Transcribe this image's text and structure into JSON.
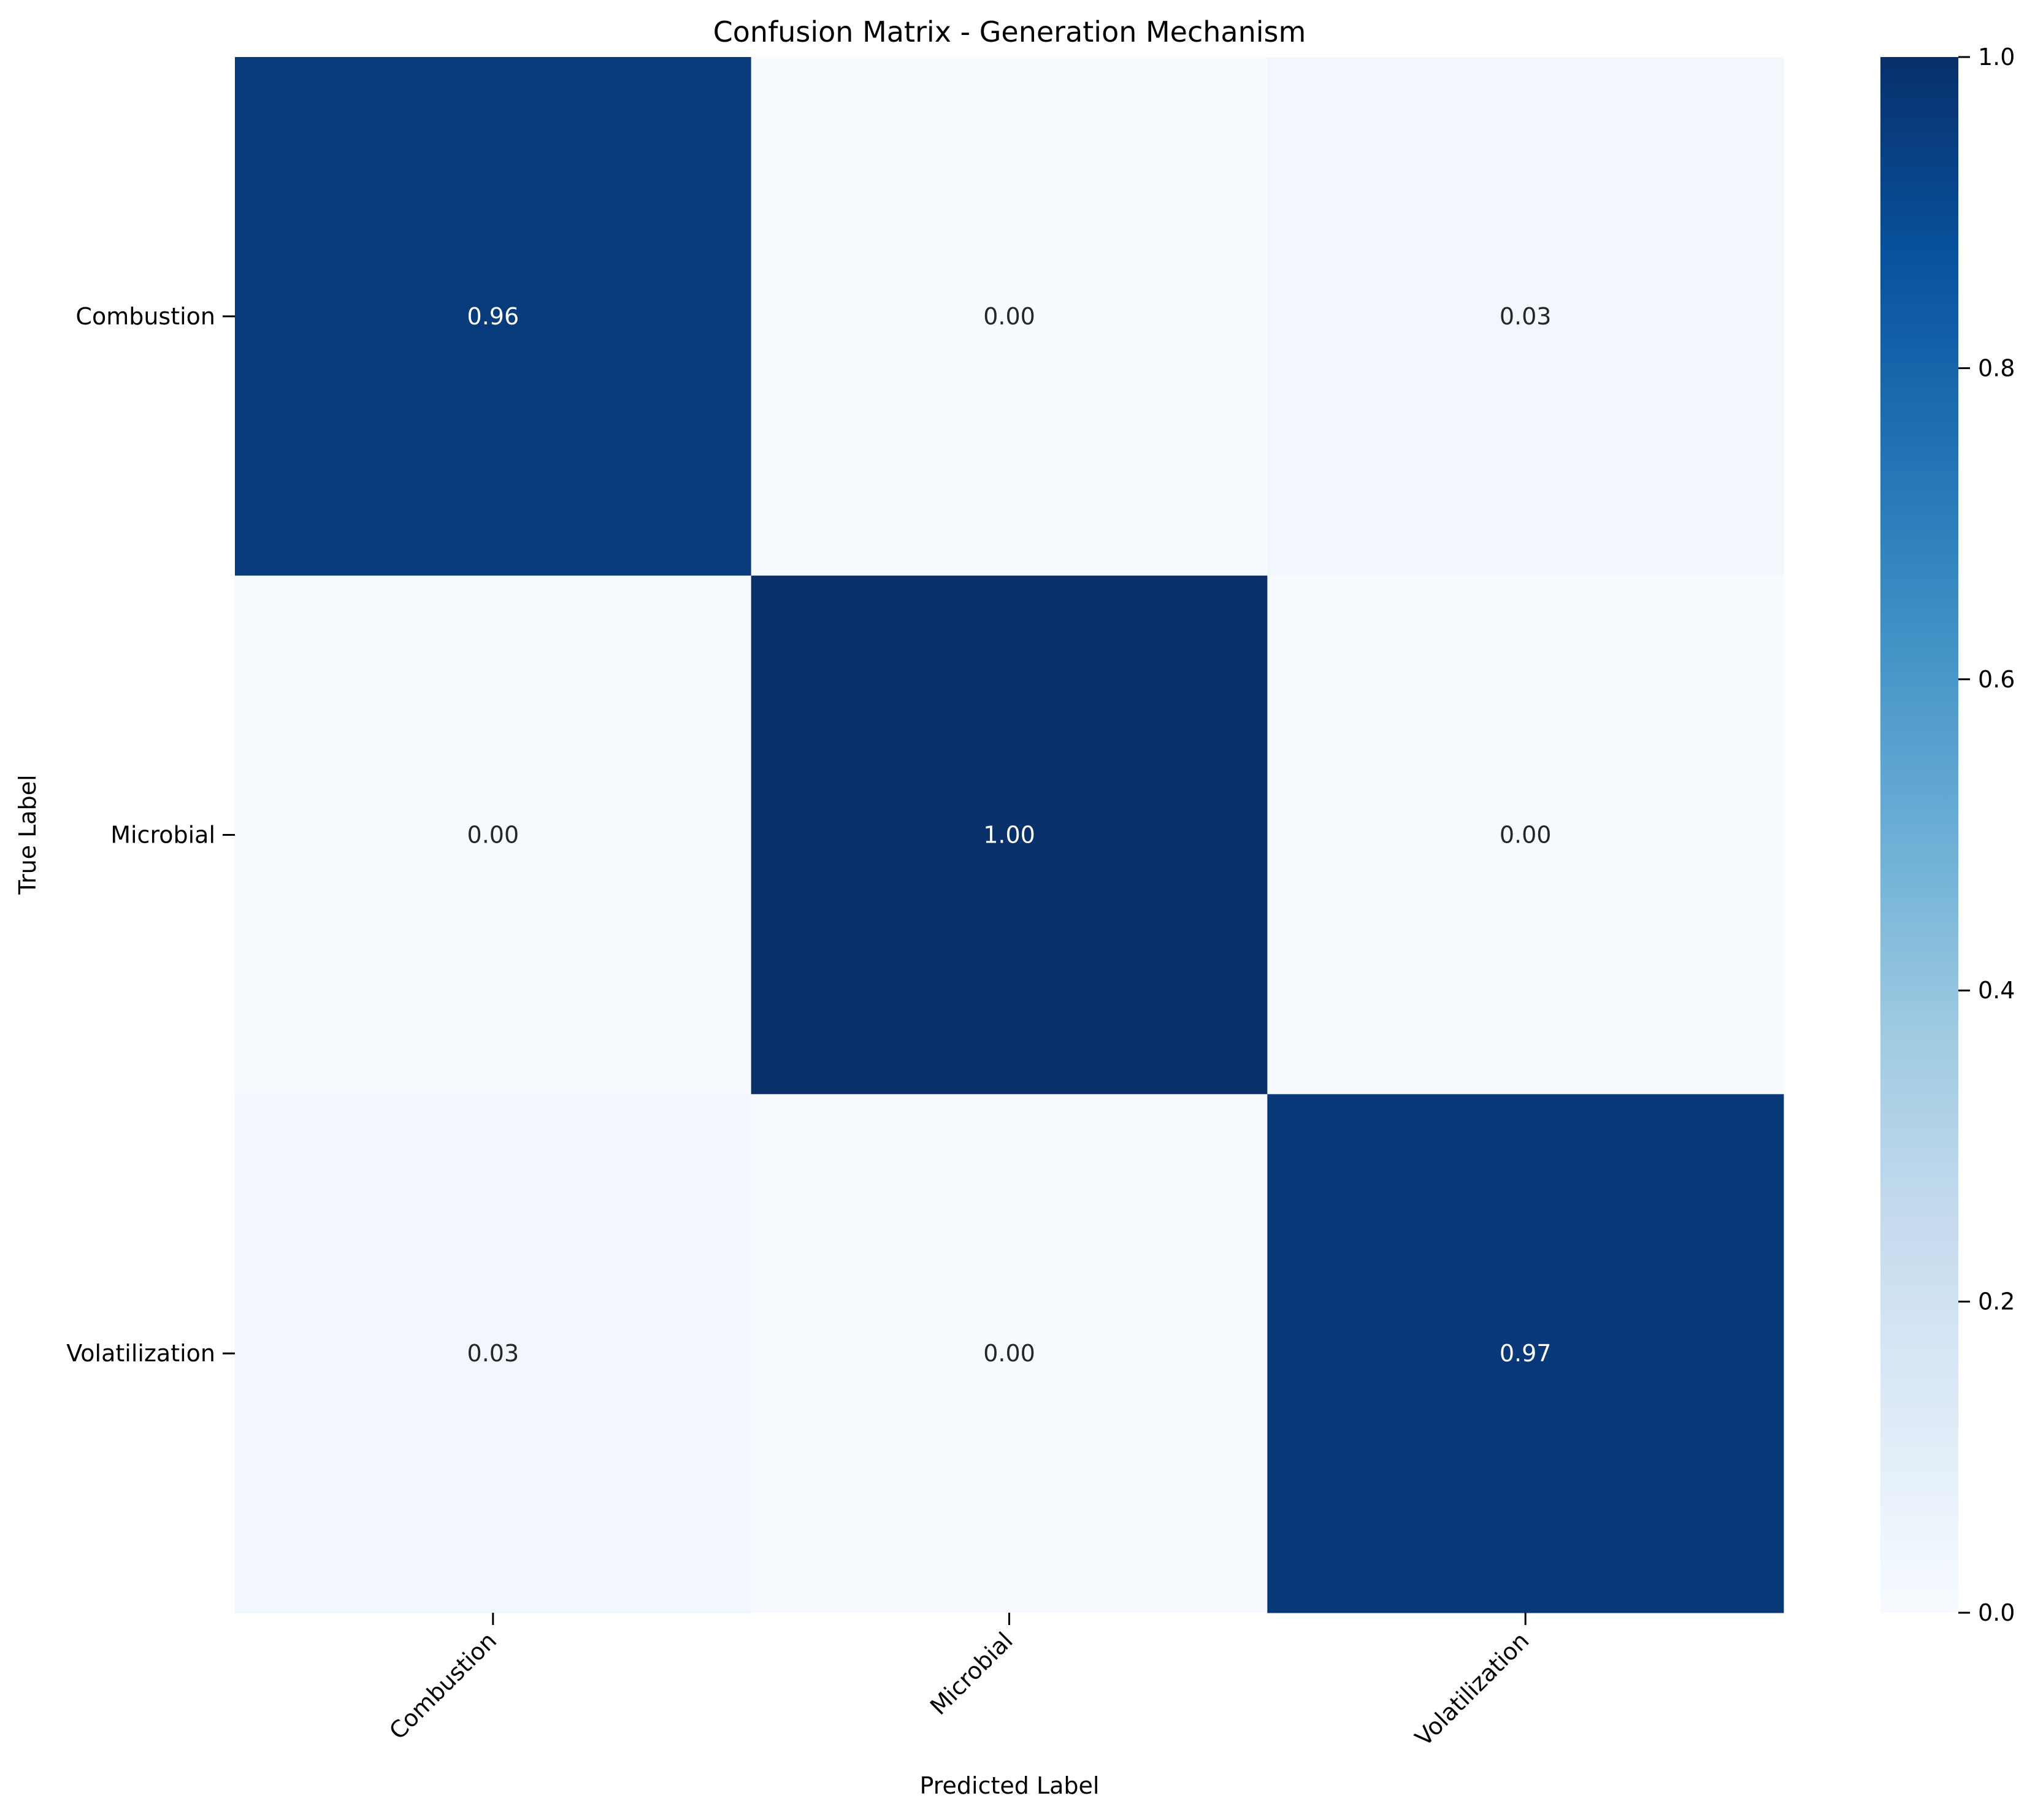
{
  "chart_data": {
    "type": "heatmap",
    "title": "Confusion Matrix - Generation Mechanism",
    "xlabel": "Predicted Label",
    "ylabel": "True Label",
    "x_categories": [
      "Combustion",
      "Microbial",
      "Volatilization"
    ],
    "y_categories": [
      "Combustion",
      "Microbial",
      "Volatilization"
    ],
    "values": [
      [
        0.96,
        0.0,
        0.03
      ],
      [
        0.0,
        1.0,
        0.0
      ],
      [
        0.03,
        0.0,
        0.97
      ]
    ],
    "value_format": "2 decimals",
    "colormap": "Blues",
    "colormap_stops": [
      "#f7fbff",
      "#deebf7",
      "#c6dbef",
      "#9ecae1",
      "#6baed6",
      "#4292c6",
      "#2171b5",
      "#08519c",
      "#08306b"
    ],
    "vmin": 0.0,
    "vmax": 1.0,
    "colorbar_ticks": [
      "0.0",
      "0.2",
      "0.4",
      "0.6",
      "0.8",
      "1.0"
    ],
    "colorbar": "right",
    "grid": false
  }
}
